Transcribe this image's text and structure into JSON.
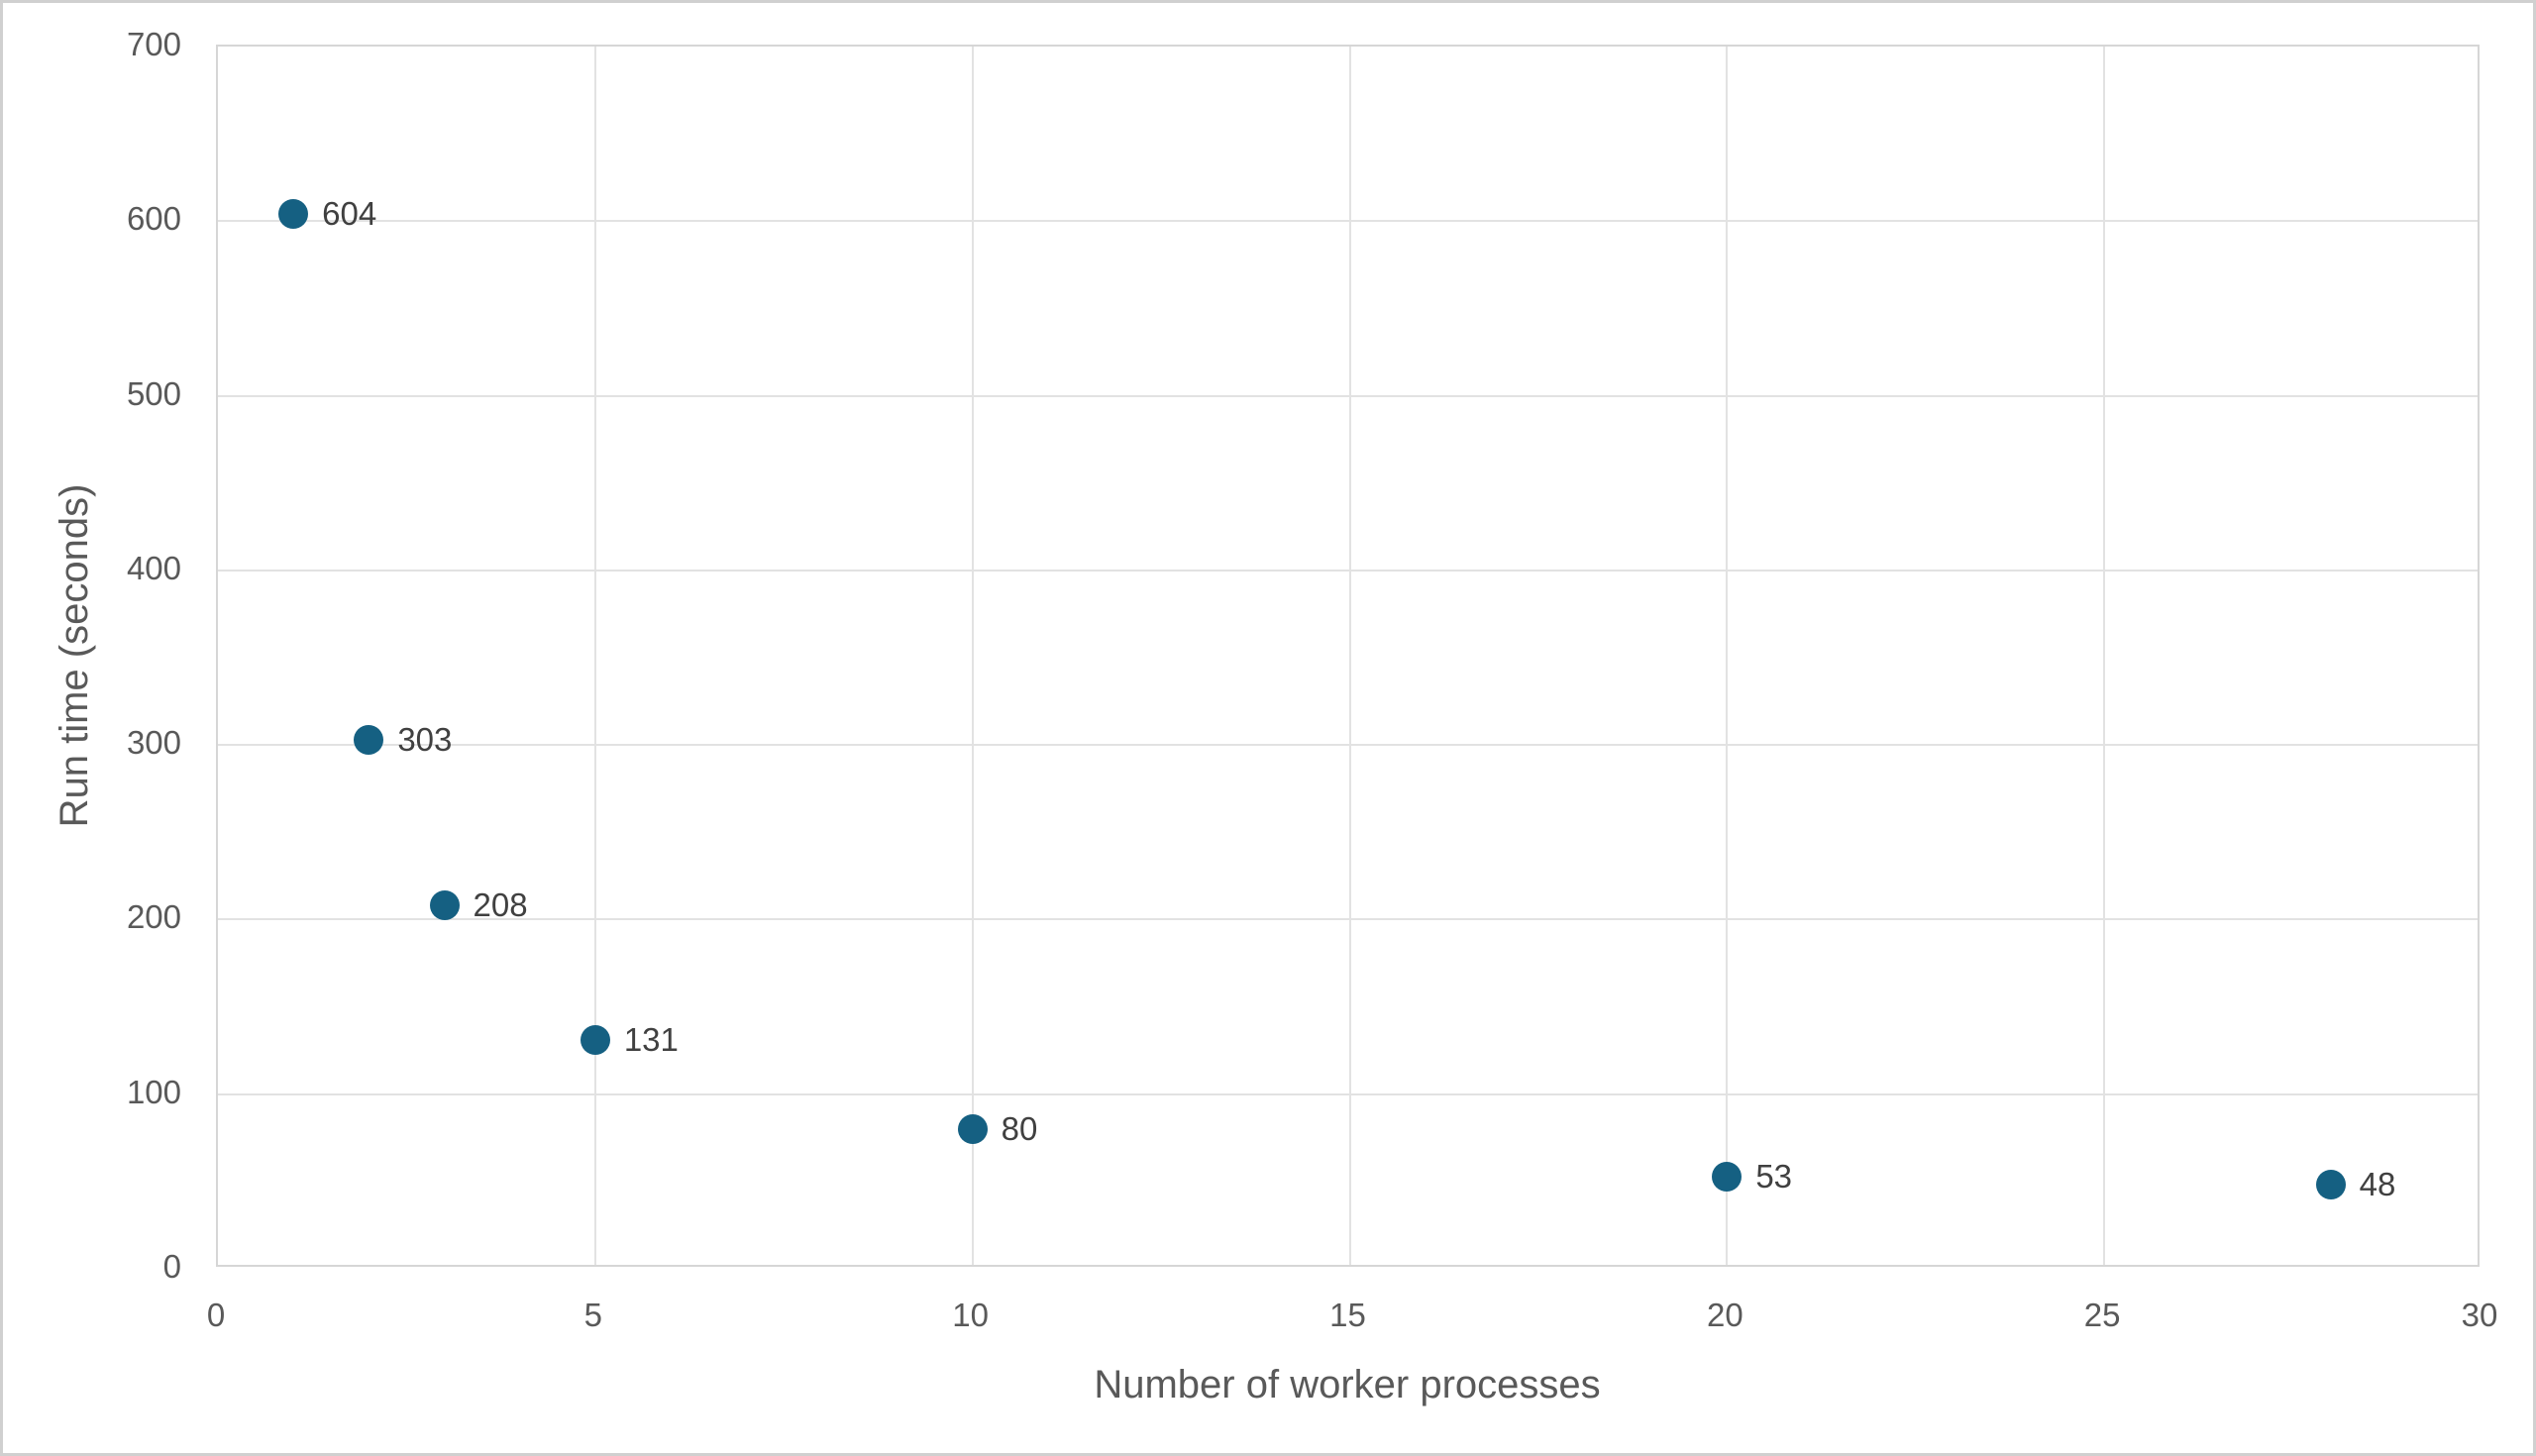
{
  "chart_data": {
    "type": "scatter",
    "title": "",
    "xlabel": "Number of worker processes",
    "ylabel": "Run time (seconds)",
    "x": [
      1,
      2,
      3,
      5,
      10,
      20,
      28
    ],
    "y": [
      604,
      303,
      208,
      131,
      80,
      53,
      48
    ],
    "point_labels": [
      "604",
      "303",
      "208",
      "131",
      "80",
      "53",
      "48"
    ],
    "xlim": [
      0,
      30
    ],
    "ylim": [
      0,
      700
    ],
    "x_ticks": [
      0,
      5,
      10,
      15,
      20,
      25,
      30
    ],
    "y_ticks": [
      0,
      100,
      200,
      300,
      400,
      500,
      600,
      700
    ],
    "grid": true,
    "legend": "none",
    "marker_color": "#156082",
    "gridline_color": "#e2e2e2",
    "plot_border_color": "#d6d6d6",
    "chart_border_color": "#d0d0d0",
    "tick_label_color": "#595959",
    "axis_title_color": "#595959",
    "point_label_color": "#404040",
    "background_color": "#ffffff"
  }
}
